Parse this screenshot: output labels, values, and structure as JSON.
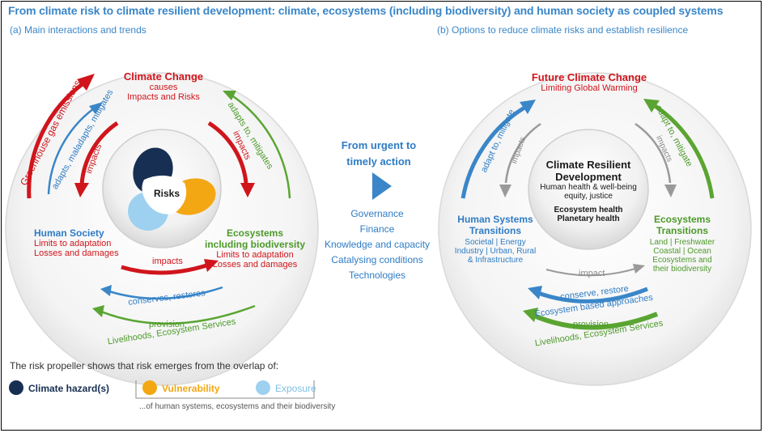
{
  "title": "From climate risk to climate resilient development: climate, ecosystems (including biodiversity) and human society as coupled systems",
  "panel_a": {
    "heading": "(a) Main interactions and trends",
    "climate_change": {
      "title": "Climate Change",
      "line1": "causes",
      "line2": "Impacts and Risks"
    },
    "human_society": {
      "title": "Human Society",
      "line1": "Limits to adaptation",
      "line2": "Losses and damages"
    },
    "ecosystems": {
      "title1": "Ecosystems",
      "title2": "including biodiversity",
      "line1": "Limits to adaptation",
      "line2": "Losses and damages"
    },
    "risks_label": "Risks",
    "arrows": {
      "ghg": "Greenhouse gas emissions",
      "adapts_maladapts": "adapts, maladapts, mitigates",
      "impacts_left": "impacts",
      "adapts_right": "adapts to, mitigates",
      "impacts_right": "impacts",
      "impacts_bottom": "impacts",
      "conserves": "conserves, restores",
      "provision": "provision",
      "livelihoods": "Livelihoods, Ecosystem Services"
    }
  },
  "panel_b": {
    "heading": "(b) Options to reduce climate risks and establish resilience",
    "future": {
      "title": "Future Climate Change",
      "line1": "Limiting Global Warming"
    },
    "center": {
      "title1": "Climate Resilient",
      "title2": "Development",
      "line1": "Human health & well-being",
      "line2": "equity, justice",
      "line3": "Ecosystem health",
      "line4": "Planetary health"
    },
    "human_systems": {
      "title1": "Human Systems",
      "title2": "Transitions",
      "line1": "Societal | Energy",
      "line2": "Industry | Urban, Rural",
      "line3": "& Infrastructure"
    },
    "eco_transitions": {
      "title1": "Ecosystems",
      "title2": "Transitions",
      "line1": "Land | Freshwater",
      "line2": "Coastal | Ocean",
      "line3": "Ecosystems and",
      "line4": "their biodiversity"
    },
    "arrows": {
      "adapt_left": "adapt to, mitigate",
      "impacts_left": "impacts",
      "adapt_right": "adapt to, mitigate",
      "impacts_right": "impacts",
      "impact_bottom": "impact",
      "conserve": "conserve, restore",
      "eba": "Ecosystem based approaches",
      "provision": "provision",
      "livelihoods": "Livelihoods, Ecosystem Services"
    }
  },
  "middle": {
    "line1": "From urgent to",
    "line2": "timely action",
    "items": [
      "Governance",
      "Finance",
      "Knowledge and capacity",
      "Catalysing conditions",
      "Technologies"
    ]
  },
  "legend": {
    "intro": "The risk propeller shows that risk emerges from the overlap of:",
    "hazard": "Climate hazard(s)",
    "vulnerability": "Vulnerability",
    "exposure": "Exposure",
    "note": "...of human systems, ecosystems and their biodiversity"
  },
  "colors": {
    "title_blue": "#3a86c8",
    "red": "#d0151c",
    "blue": "#2e7cc4",
    "green": "#4c9a2a",
    "hazard": "#172f52",
    "vulnerability": "#f3a712",
    "exposure": "#9dd1ef"
  }
}
